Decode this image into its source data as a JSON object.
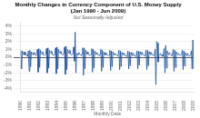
{
  "chart_data": {
    "type": "line",
    "title": [
      "Monthly Changes in Currency Component of U.S. Money Supply",
      "(Jan 1990 - Jun 2009)"
    ],
    "subtitle": "Not Seasonally Adjusted",
    "xlabel": "Monthly Data",
    "color": "#1a4f9c",
    "grid": true,
    "ylim": [
      -4.5,
      4.5
    ],
    "yticks": [
      {
        "value": -4,
        "label": "-4%"
      },
      {
        "value": -3,
        "label": "-3%"
      },
      {
        "value": -2,
        "label": "-2%"
      },
      {
        "value": -1,
        "label": "-1%"
      },
      {
        "value": 0,
        "label": "0%"
      },
      {
        "value": 1,
        "label": "1%"
      },
      {
        "value": 2,
        "label": "2%"
      },
      {
        "value": 3,
        "label": "3%"
      },
      {
        "value": 4,
        "label": "4%"
      }
    ],
    "categories": [
      "1990",
      null,
      null,
      null,
      null,
      null,
      null,
      null,
      null,
      null,
      null,
      null,
      "1991",
      null,
      null,
      null,
      null,
      null,
      null,
      null,
      null,
      null,
      null,
      null,
      "1992",
      null,
      null,
      null,
      null,
      null,
      null,
      null,
      null,
      null,
      null,
      null,
      "1993",
      null,
      null,
      null,
      null,
      null,
      null,
      null,
      null,
      null,
      null,
      null,
      "1994",
      null,
      null,
      null,
      null,
      null,
      null,
      null,
      null,
      null,
      null,
      null,
      "1995",
      null,
      null,
      null,
      null,
      null,
      null,
      null,
      null,
      null,
      null,
      null,
      "1996",
      null,
      null,
      null,
      null,
      null,
      null,
      null,
      null,
      null,
      null,
      null,
      "1997",
      null,
      null,
      null,
      null,
      null,
      null,
      null,
      null,
      null,
      null,
      null,
      "1998",
      null,
      null,
      null,
      null,
      null,
      null,
      null,
      null,
      null,
      null,
      null,
      "1999",
      null,
      null,
      null,
      null,
      null,
      null,
      null,
      null,
      null,
      null,
      null,
      "2000",
      null,
      null,
      null,
      null,
      null,
      null,
      null,
      null,
      null,
      null,
      null,
      "2001",
      null,
      null,
      null,
      null,
      null,
      null,
      null,
      null,
      null,
      null,
      null,
      "2002",
      null,
      null,
      null,
      null,
      null,
      null,
      null,
      null,
      null,
      null,
      null,
      "2003",
      null,
      null,
      null,
      null,
      null,
      null,
      null,
      null,
      null,
      null,
      null,
      "2004",
      null,
      null,
      null,
      null,
      null,
      null,
      null,
      null,
      null,
      null,
      null,
      "2005",
      null,
      null,
      null,
      null,
      null,
      null,
      null,
      null,
      null,
      null,
      null,
      "2006",
      null,
      null,
      null,
      null,
      null,
      null,
      null,
      null,
      null,
      null,
      null,
      "2007",
      null,
      null,
      null,
      null,
      null,
      null,
      null,
      null,
      null,
      null,
      null,
      "2008",
      null,
      null,
      null,
      null,
      null,
      null,
      null,
      null,
      null,
      null,
      null,
      "2009",
      null
    ],
    "values": [
      0.9,
      -1.5,
      0.8,
      0.5,
      0.3,
      0.7,
      0.3,
      0.4,
      0.2,
      0.1,
      0.8,
      -1.8,
      0.9,
      -1.2,
      0.7,
      0.4,
      0.3,
      0.6,
      0.4,
      0.3,
      0.2,
      0.5,
      1.0,
      -1.9,
      1.1,
      -1.3,
      0.9,
      0.5,
      0.4,
      0.7,
      0.3,
      0.2,
      0.3,
      0.4,
      1.1,
      -2.0,
      1.2,
      -1.4,
      0.9,
      0.6,
      0.5,
      0.8,
      0.3,
      0.3,
      0.2,
      0.4,
      1.2,
      -2.1,
      1.3,
      -1.5,
      1.0,
      0.6,
      0.5,
      0.8,
      0.4,
      0.3,
      0.3,
      0.5,
      1.3,
      -2.2,
      1.4,
      -1.6,
      1.0,
      0.7,
      0.5,
      0.9,
      0.4,
      0.3,
      0.3,
      0.5,
      1.3,
      -0.5,
      3.2,
      -2.0,
      0.5,
      0.4,
      0.3,
      0.6,
      0.4,
      0.3,
      0.2,
      0.4,
      1.2,
      -2.3,
      1.2,
      -1.5,
      0.9,
      0.6,
      0.4,
      0.7,
      0.4,
      0.2,
      0.3,
      0.4,
      1.1,
      -1.9,
      1.0,
      -1.4,
      0.8,
      0.5,
      0.4,
      0.6,
      0.3,
      0.3,
      0.2,
      0.4,
      1.0,
      -1.8,
      0.9,
      -1.3,
      0.7,
      0.5,
      0.3,
      0.6,
      0.3,
      0.2,
      0.2,
      0.3,
      0.9,
      -1.7,
      0.8,
      -1.2,
      0.7,
      0.4,
      0.3,
      0.5,
      0.3,
      0.2,
      0.2,
      0.3,
      0.9,
      -1.6,
      0.8,
      -1.2,
      0.6,
      0.4,
      0.3,
      0.5,
      0.2,
      0.2,
      0.1,
      0.3,
      0.8,
      -1.5,
      0.7,
      -1.1,
      0.6,
      0.4,
      0.2,
      0.5,
      0.2,
      0.2,
      0.1,
      0.3,
      0.8,
      -1.5,
      0.8,
      -1.0,
      0.7,
      0.5,
      0.3,
      0.6,
      0.3,
      0.2,
      0.2,
      0.4,
      0.9,
      -1.6,
      0.9,
      -1.1,
      0.7,
      0.5,
      0.3,
      0.6,
      0.3,
      0.3,
      0.2,
      0.4,
      1.0,
      -3.5,
      2.0,
      1.8,
      -0.6,
      0.3,
      0.4,
      0.5,
      0.2,
      0.3,
      0.1,
      0.5,
      1.1,
      -2.0,
      1.5,
      -1.4,
      0.8,
      0.5,
      0.3,
      0.6,
      0.4,
      0.3,
      0.2,
      0.4,
      1.0,
      -1.8,
      0.9,
      -1.3,
      0.7,
      0.4,
      0.3,
      0.5,
      0.3,
      0.2,
      0.2,
      0.4,
      0.9,
      -1.6,
      0.8,
      -1.1,
      0.6,
      0.4,
      0.2,
      0.5,
      0.2,
      0.1,
      0.1,
      0.3,
      0.8,
      -1.5,
      2.2,
      -1.5
    ]
  }
}
